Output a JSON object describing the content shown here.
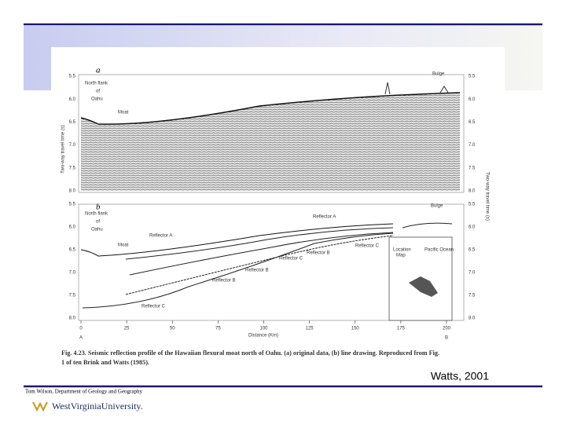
{
  "figure": {
    "panel_a": {
      "label": "a",
      "flank": [
        "North flank",
        "of",
        "Oahu"
      ],
      "moat": "Moat",
      "bulge": "Bulge"
    },
    "panel_b": {
      "label": "b",
      "flank": [
        "North flank",
        "of",
        "Oahu"
      ],
      "moat": "Moat",
      "bulge": "Bulge",
      "reflectors": [
        "Reflector A",
        "Reflector B",
        "Reflector C",
        "Reflector A",
        "Reflector B",
        "Reflector C",
        "Reflector C",
        "Reflector B"
      ],
      "map_title": [
        "Location",
        "Map"
      ],
      "map_ocean": "Pacific Ocean"
    },
    "time_ticks": [
      "5.5",
      "6.0",
      "6.5",
      "7.0",
      "7.5",
      "8.0"
    ],
    "time_axis_label": "Two-way travel time (s)",
    "distance_ticks": [
      "0",
      "25",
      "50",
      "75",
      "100",
      "125",
      "150",
      "175",
      "200"
    ],
    "distance_axis_label": "Distance (Km)",
    "end_left": "A",
    "end_right": "B",
    "caption": [
      "Fig. 4.23. Seismic reflection profile of the Hawaiian flexural moat north of Oahu. (a) original data, (b) line drawing. Reproduced from Fig.",
      "1 of ten Brink and Watts (1985)."
    ]
  },
  "credit": "Watts, 2001",
  "footer": {
    "author": "Tom Wilson, Department of Geology and Geography",
    "university": "WestVirginiaUniversity."
  }
}
